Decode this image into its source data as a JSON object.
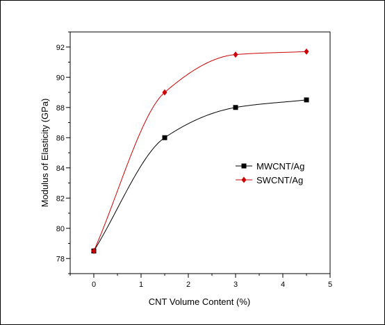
{
  "chart_data": {
    "type": "line",
    "title": "",
    "xlabel": "CNT Volume Content (%)",
    "ylabel": "Modulus of Elasticity (GPa)",
    "xlim": [
      -0.5,
      5
    ],
    "ylim": [
      77,
      93
    ],
    "x_ticks": [
      0,
      1,
      2,
      3,
      4,
      5
    ],
    "y_ticks": [
      78,
      80,
      82,
      84,
      86,
      88,
      90,
      92
    ],
    "x_tick_labels": [
      "0",
      "1",
      "2",
      "3",
      "4",
      "5"
    ],
    "y_tick_labels": [
      "78",
      "80",
      "82",
      "84",
      "86",
      "88",
      "90",
      "92"
    ],
    "grid": false,
    "legend_position": "right",
    "series": [
      {
        "name": "MWCNT/Ag",
        "marker": "square",
        "color": "#000000",
        "x": [
          0,
          1.5,
          3,
          4.5
        ],
        "values": [
          78.5,
          86.0,
          88.0,
          88.5
        ]
      },
      {
        "name": "SWCNT/Ag",
        "marker": "diamond",
        "color": "#cc0000",
        "x": [
          0,
          1.5,
          3,
          4.5
        ],
        "values": [
          78.5,
          89.0,
          91.5,
          91.7
        ]
      }
    ]
  }
}
